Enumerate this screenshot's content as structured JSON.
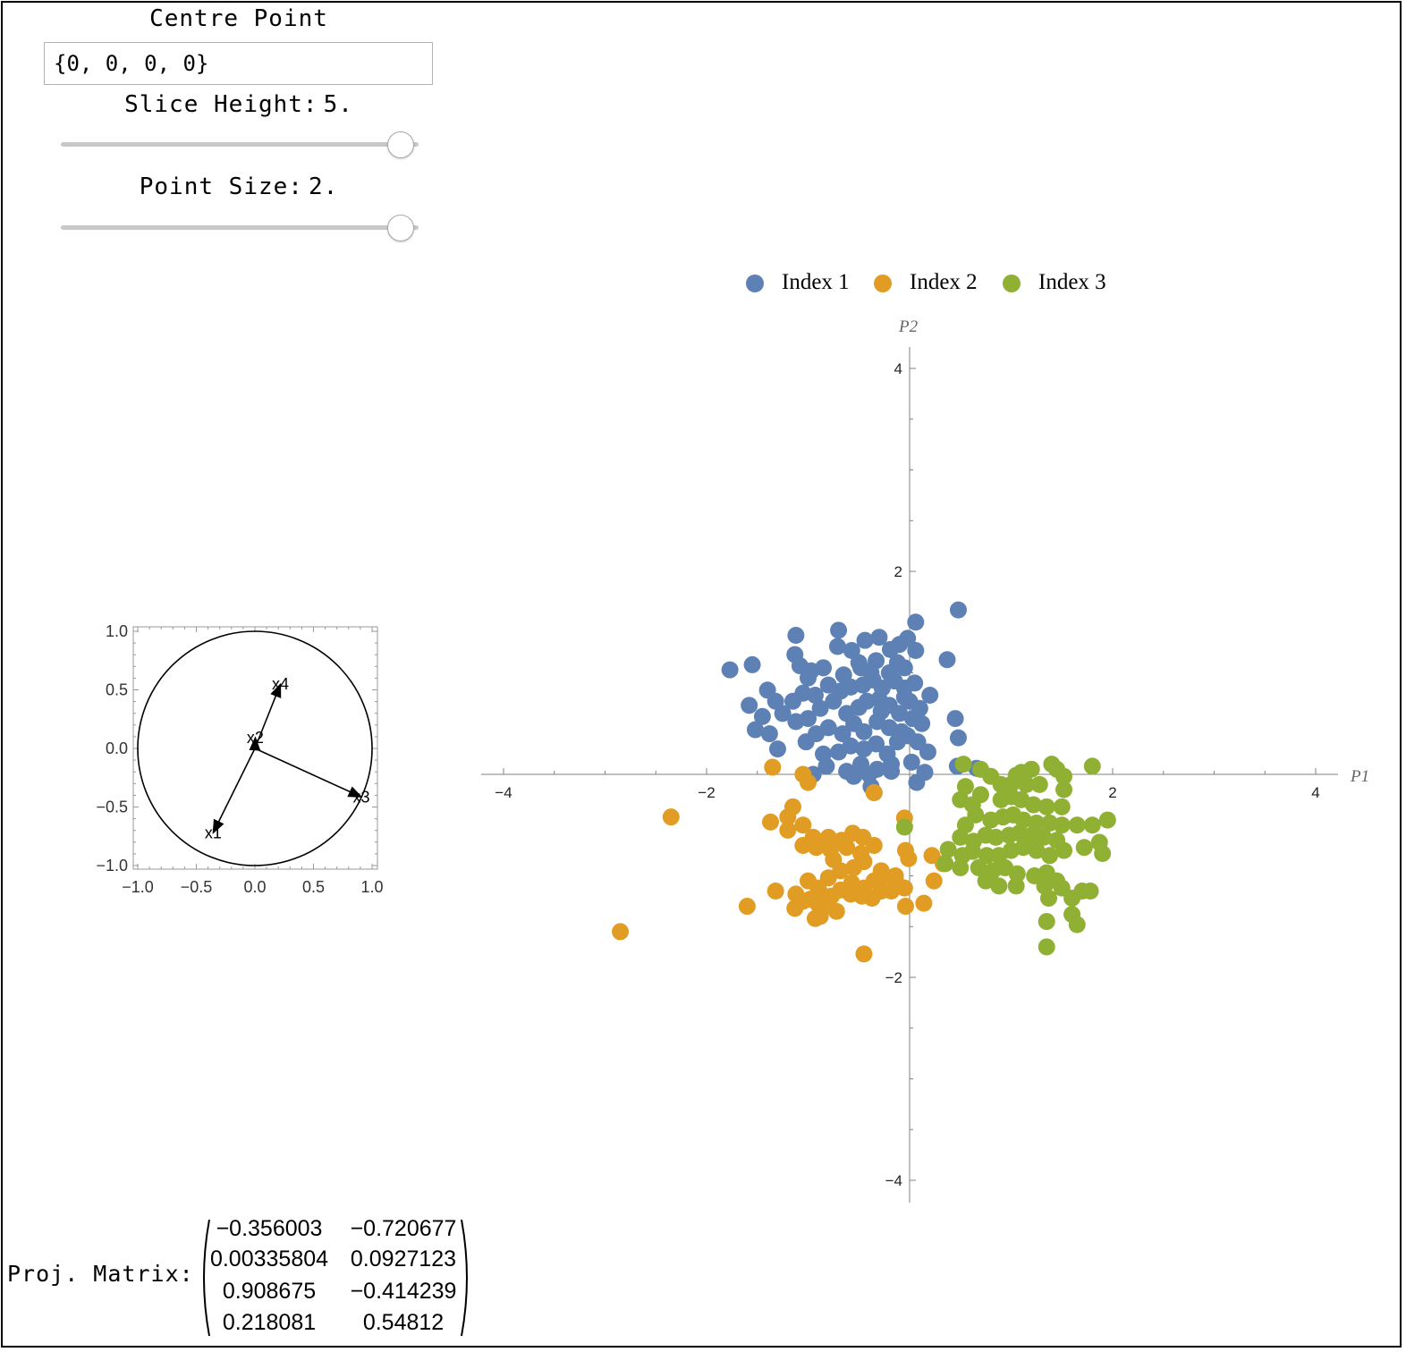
{
  "controls": {
    "centre_point_title": "Centre Point",
    "centre_point_value": "{0, 0, 0, 0}",
    "slice_height_label": "Slice Height:",
    "slice_height_value": "5.",
    "slice_height_fraction": 0.95,
    "point_size_label": "Point Size:",
    "point_size_value": "2.",
    "point_size_fraction": 0.95
  },
  "projection_matrix": {
    "label": "Proj. Matrix:",
    "rows": [
      [
        "−0.356003",
        "−0.720677"
      ],
      [
        "0.00335804",
        "0.0927123"
      ],
      [
        "0.908675",
        "−0.414239"
      ],
      [
        "0.218081",
        "0.54812"
      ]
    ]
  },
  "colors": {
    "index1": "#5e81b5",
    "index2": "#e19c24",
    "index3": "#8fb032",
    "axis": "#808080"
  },
  "chart_data": [
    {
      "type": "line",
      "description_of_marks": "unit circle with projected axis vectors",
      "title": "",
      "xlim": [
        -1.05,
        1.05
      ],
      "ylim": [
        -1.05,
        1.05
      ],
      "xticks": [
        "−1.0",
        "−0.5",
        "0.0",
        "0.5",
        "1.0"
      ],
      "yticks": [
        "1.0",
        "0.5",
        "0.0",
        "−0.5",
        "−1.0"
      ],
      "xtick_values": [
        -1.0,
        -0.5,
        0.0,
        0.5,
        1.0
      ],
      "ytick_values": [
        1.0,
        0.5,
        0.0,
        -0.5,
        -1.0
      ],
      "vectors": [
        {
          "name": "x1",
          "x": -0.356003,
          "y": -0.720677
        },
        {
          "name": "x2",
          "x": 0.00335804,
          "y": 0.0927123
        },
        {
          "name": "x3",
          "x": 0.908675,
          "y": -0.414239
        },
        {
          "name": "x4",
          "x": 0.218081,
          "y": 0.54812
        }
      ]
    },
    {
      "type": "scatter",
      "title": "",
      "xlabel": "P1",
      "ylabel": "P2",
      "xlim": [
        -4.3,
        4.3
      ],
      "ylim": [
        -4.2,
        4.2
      ],
      "xticks": [
        "−4",
        "−2",
        "2",
        "4"
      ],
      "xtick_values": [
        -4,
        -2,
        2,
        4
      ],
      "yticks": [
        "4",
        "2",
        "−2",
        "−4"
      ],
      "ytick_values": [
        4,
        2,
        -2,
        -4
      ],
      "legend_position": "top",
      "series": [
        {
          "name": "Index 1",
          "points": [
            [
              0.48,
              1.62
            ],
            [
              0.06,
              1.5
            ],
            [
              -0.7,
              1.42
            ],
            [
              -1.12,
              1.37
            ],
            [
              -0.44,
              1.32
            ],
            [
              0.06,
              1.22
            ],
            [
              -1.55,
              1.08
            ],
            [
              -1.77,
              1.03
            ],
            [
              0.37,
              1.13
            ],
            [
              -1.13,
              1.18
            ],
            [
              -0.71,
              1.26
            ],
            [
              -0.19,
              1.23
            ],
            [
              -0.57,
              1.22
            ],
            [
              -0.02,
              1.34
            ],
            [
              -0.3,
              1.35
            ],
            [
              -0.1,
              1.28
            ],
            [
              -0.5,
              1.1
            ],
            [
              -0.33,
              1.12
            ],
            [
              -1.08,
              1.07
            ],
            [
              -0.97,
              1.02
            ],
            [
              -0.85,
              1.05
            ],
            [
              -0.65,
              0.98
            ],
            [
              -0.48,
              1.05
            ],
            [
              -0.38,
              1.0
            ],
            [
              -0.2,
              1.0
            ],
            [
              -0.12,
              1.1
            ],
            [
              -0.05,
              1.05
            ],
            [
              0.05,
              0.9
            ],
            [
              -0.05,
              0.85
            ],
            [
              -0.15,
              0.92
            ],
            [
              -0.27,
              0.85
            ],
            [
              -0.36,
              0.93
            ],
            [
              -0.46,
              0.88
            ],
            [
              -0.58,
              0.86
            ],
            [
              -0.68,
              0.82
            ],
            [
              -0.8,
              0.88
            ],
            [
              -0.93,
              0.78
            ],
            [
              -1.05,
              0.8
            ],
            [
              -1.0,
              0.95
            ],
            [
              -1.15,
              0.72
            ],
            [
              -1.32,
              0.72
            ],
            [
              -1.4,
              0.83
            ],
            [
              -1.58,
              0.68
            ],
            [
              -1.45,
              0.57
            ],
            [
              -1.52,
              0.44
            ],
            [
              -1.38,
              0.4
            ],
            [
              -1.25,
              0.6
            ],
            [
              -1.12,
              0.52
            ],
            [
              -1.0,
              0.55
            ],
            [
              -0.88,
              0.65
            ],
            [
              -0.75,
              0.72
            ],
            [
              -0.62,
              0.6
            ],
            [
              -0.5,
              0.66
            ],
            [
              -0.42,
              0.72
            ],
            [
              -0.3,
              0.74
            ],
            [
              -0.2,
              0.68
            ],
            [
              -0.1,
              0.6
            ],
            [
              0.0,
              0.72
            ],
            [
              0.1,
              0.65
            ],
            [
              0.2,
              0.78
            ],
            [
              0.12,
              0.5
            ],
            [
              0.03,
              0.55
            ],
            [
              -0.08,
              0.42
            ],
            [
              -0.2,
              0.46
            ],
            [
              -0.32,
              0.52
            ],
            [
              -0.45,
              0.42
            ],
            [
              -0.55,
              0.5
            ],
            [
              -0.66,
              0.4
            ],
            [
              -0.8,
              0.46
            ],
            [
              -0.92,
              0.4
            ],
            [
              -1.02,
              0.32
            ],
            [
              -0.85,
              0.2
            ],
            [
              -0.7,
              0.22
            ],
            [
              -0.58,
              0.28
            ],
            [
              -0.45,
              0.25
            ],
            [
              -0.33,
              0.3
            ],
            [
              -0.22,
              0.2
            ],
            [
              -0.12,
              0.32
            ],
            [
              -0.02,
              0.38
            ],
            [
              0.08,
              0.32
            ],
            [
              0.18,
              0.22
            ],
            [
              0.02,
              0.12
            ],
            [
              -0.18,
              0.1
            ],
            [
              -0.32,
              0.05
            ],
            [
              -0.48,
              0.1
            ],
            [
              -0.62,
              0.03
            ],
            [
              -0.82,
              0.08
            ],
            [
              -0.95,
              0.0
            ],
            [
              -0.55,
              -0.02
            ],
            [
              -0.4,
              0.0
            ],
            [
              0.15,
              0.02
            ],
            [
              -0.18,
              0.03
            ],
            [
              0.48,
              0.36
            ],
            [
              0.45,
              0.55
            ],
            [
              0.47,
              0.08
            ],
            [
              0.66,
              0.06
            ],
            [
              -0.35,
              -0.18
            ],
            [
              -0.38,
              -0.12
            ],
            [
              0.07,
              -0.08
            ],
            [
              -0.28,
              0.62
            ],
            [
              -0.05,
              0.76
            ],
            [
              -1.3,
              0.25
            ]
          ]
        },
        {
          "name": "Index 2",
          "points": [
            [
              -1.35,
              0.07
            ],
            [
              -1.0,
              -0.08
            ],
            [
              -1.05,
              0.0
            ],
            [
              -0.35,
              -0.18
            ],
            [
              -0.05,
              -0.43
            ],
            [
              -2.35,
              -0.42
            ],
            [
              -1.37,
              -0.47
            ],
            [
              -1.2,
              -0.42
            ],
            [
              -1.15,
              -0.32
            ],
            [
              -1.2,
              -0.55
            ],
            [
              -1.05,
              -0.5
            ],
            [
              -0.95,
              -0.62
            ],
            [
              -0.8,
              -0.62
            ],
            [
              -0.67,
              -0.65
            ],
            [
              -0.56,
              -0.58
            ],
            [
              -0.46,
              -0.62
            ],
            [
              -1.05,
              -0.7
            ],
            [
              -0.92,
              -0.72
            ],
            [
              -0.78,
              -0.74
            ],
            [
              -0.62,
              -0.72
            ],
            [
              -0.48,
              -0.78
            ],
            [
              -0.35,
              -0.7
            ],
            [
              -0.75,
              -0.84
            ],
            [
              -0.55,
              -0.92
            ],
            [
              -0.45,
              -0.86
            ],
            [
              -0.28,
              -0.95
            ],
            [
              -0.14,
              -1.0
            ],
            [
              -0.04,
              -0.75
            ],
            [
              -1.0,
              -1.05
            ],
            [
              -0.9,
              -1.12
            ],
            [
              -0.8,
              -1.02
            ],
            [
              -0.68,
              -0.95
            ],
            [
              -0.57,
              -1.07
            ],
            [
              -0.45,
              -1.12
            ],
            [
              -0.35,
              -1.05
            ],
            [
              -0.25,
              -1.0
            ],
            [
              -0.13,
              -1.07
            ],
            [
              -1.12,
              -1.18
            ],
            [
              -0.98,
              -1.23
            ],
            [
              -0.88,
              -1.17
            ],
            [
              -0.77,
              -1.2
            ],
            [
              -0.68,
              -1.14
            ],
            [
              -0.58,
              -1.18
            ],
            [
              -0.47,
              -1.2
            ],
            [
              -0.37,
              -1.22
            ],
            [
              -0.28,
              -1.15
            ],
            [
              -0.18,
              -1.15
            ],
            [
              -0.05,
              -1.12
            ],
            [
              -1.32,
              -1.15
            ],
            [
              -1.05,
              -1.25
            ],
            [
              -0.9,
              -1.28
            ],
            [
              -0.88,
              -1.4
            ],
            [
              -0.72,
              -1.35
            ],
            [
              -1.6,
              -1.3
            ],
            [
              -1.13,
              -1.32
            ],
            [
              -0.93,
              -1.42
            ],
            [
              -0.85,
              -1.3
            ],
            [
              -2.85,
              -1.55
            ],
            [
              -0.45,
              -1.77
            ],
            [
              -0.04,
              -1.3
            ],
            [
              0.14,
              -1.27
            ],
            [
              0.24,
              -1.05
            ],
            [
              0.22,
              -0.8
            ],
            [
              -0.01,
              -0.83
            ],
            [
              0.33,
              -0.88
            ]
          ]
        },
        {
          "name": "Index 3",
          "points": [
            [
              1.8,
              0.08
            ],
            [
              0.7,
              0.05
            ],
            [
              0.53,
              0.1
            ],
            [
              1.1,
              0.02
            ],
            [
              1.05,
              -0.01
            ],
            [
              1.2,
              0.05
            ],
            [
              1.4,
              0.1
            ],
            [
              1.45,
              0.05
            ],
            [
              1.52,
              -0.02
            ],
            [
              1.52,
              -0.15
            ],
            [
              0.8,
              -0.02
            ],
            [
              0.9,
              -0.1
            ],
            [
              1.0,
              -0.1
            ],
            [
              1.15,
              -0.1
            ],
            [
              1.28,
              -0.1
            ],
            [
              0.55,
              -0.12
            ],
            [
              0.7,
              -0.2
            ],
            [
              0.62,
              -0.3
            ],
            [
              0.5,
              -0.25
            ],
            [
              0.9,
              -0.25
            ],
            [
              1.0,
              -0.22
            ],
            [
              1.1,
              -0.25
            ],
            [
              1.22,
              -0.3
            ],
            [
              1.35,
              -0.32
            ],
            [
              1.5,
              -0.32
            ],
            [
              0.65,
              -0.4
            ],
            [
              0.55,
              -0.5
            ],
            [
              0.8,
              -0.45
            ],
            [
              0.92,
              -0.42
            ],
            [
              1.02,
              -0.4
            ],
            [
              1.12,
              -0.45
            ],
            [
              1.25,
              -0.48
            ],
            [
              1.38,
              -0.48
            ],
            [
              1.5,
              -0.5
            ],
            [
              1.65,
              -0.5
            ],
            [
              1.8,
              -0.5
            ],
            [
              1.95,
              -0.45
            ],
            [
              0.5,
              -0.62
            ],
            [
              0.63,
              -0.66
            ],
            [
              0.75,
              -0.6
            ],
            [
              0.85,
              -0.62
            ],
            [
              0.98,
              -0.6
            ],
            [
              1.08,
              -0.58
            ],
            [
              1.2,
              -0.6
            ],
            [
              1.32,
              -0.62
            ],
            [
              1.45,
              -0.65
            ],
            [
              0.38,
              -0.74
            ],
            [
              0.52,
              -0.8
            ],
            [
              0.62,
              -0.76
            ],
            [
              0.76,
              -0.8
            ],
            [
              0.88,
              -0.8
            ],
            [
              1.0,
              -0.75
            ],
            [
              1.12,
              -0.72
            ],
            [
              1.25,
              -0.75
            ],
            [
              1.38,
              -0.8
            ],
            [
              1.52,
              -0.75
            ],
            [
              1.72,
              -0.72
            ],
            [
              1.87,
              -0.67
            ],
            [
              1.9,
              -0.78
            ],
            [
              0.35,
              -0.88
            ],
            [
              0.5,
              -0.92
            ],
            [
              0.68,
              -0.92
            ],
            [
              0.82,
              -0.95
            ],
            [
              0.94,
              -0.92
            ],
            [
              1.06,
              -0.98
            ],
            [
              1.23,
              -1.0
            ],
            [
              1.35,
              -0.97
            ],
            [
              1.45,
              -1.05
            ],
            [
              0.75,
              -1.05
            ],
            [
              0.88,
              -1.1
            ],
            [
              1.05,
              -1.1
            ],
            [
              1.33,
              -1.1
            ],
            [
              1.5,
              -1.12
            ],
            [
              1.6,
              -1.22
            ],
            [
              1.37,
              -1.22
            ],
            [
              1.7,
              -1.15
            ],
            [
              1.78,
              -1.15
            ],
            [
              1.6,
              -1.38
            ],
            [
              1.65,
              -1.48
            ],
            [
              1.35,
              -1.45
            ],
            [
              1.35,
              -1.7
            ],
            [
              -0.05,
              -0.52
            ]
          ]
        }
      ]
    }
  ]
}
